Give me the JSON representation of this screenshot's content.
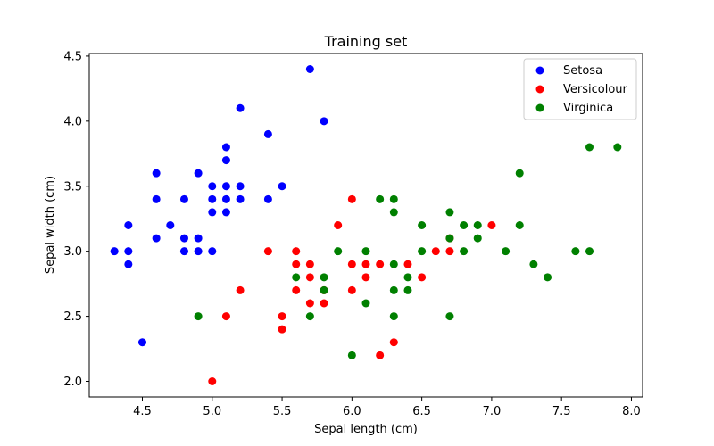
{
  "chart_data": {
    "type": "scatter",
    "title": "Training set",
    "xlabel": "Sepal length (cm)",
    "ylabel": "Sepal width (cm)",
    "xlim": [
      4.12,
      8.08
    ],
    "ylim": [
      1.88,
      4.52
    ],
    "xticks": [
      "4.5",
      "5.0",
      "5.5",
      "6.0",
      "6.5",
      "7.0",
      "7.5",
      "8.0"
    ],
    "xtick_values": [
      4.5,
      5.0,
      5.5,
      6.0,
      6.5,
      7.0,
      7.5,
      8.0
    ],
    "yticks": [
      "2.0",
      "2.5",
      "3.0",
      "3.5",
      "4.0",
      "4.5"
    ],
    "ytick_values": [
      2.0,
      2.5,
      3.0,
      3.5,
      4.0,
      4.5
    ],
    "grid": false,
    "legend_position": "top-right",
    "series": [
      {
        "name": "Setosa",
        "color": "#0000ff",
        "points": [
          [
            4.3,
            3.0
          ],
          [
            4.4,
            3.2
          ],
          [
            4.4,
            3.0
          ],
          [
            4.4,
            2.9
          ],
          [
            4.5,
            2.3
          ],
          [
            4.6,
            3.6
          ],
          [
            4.6,
            3.4
          ],
          [
            4.6,
            3.1
          ],
          [
            4.7,
            3.2
          ],
          [
            4.8,
            3.4
          ],
          [
            4.8,
            3.1
          ],
          [
            4.8,
            3.0
          ],
          [
            4.9,
            3.6
          ],
          [
            4.9,
            3.1
          ],
          [
            4.9,
            3.0
          ],
          [
            5.0,
            3.5
          ],
          [
            5.0,
            3.4
          ],
          [
            5.0,
            3.3
          ],
          [
            5.0,
            3.0
          ],
          [
            5.1,
            3.8
          ],
          [
            5.1,
            3.7
          ],
          [
            5.1,
            3.5
          ],
          [
            5.1,
            3.4
          ],
          [
            5.1,
            3.3
          ],
          [
            5.2,
            4.1
          ],
          [
            5.2,
            3.5
          ],
          [
            5.2,
            3.4
          ],
          [
            5.4,
            3.9
          ],
          [
            5.4,
            3.4
          ],
          [
            5.5,
            3.5
          ],
          [
            5.7,
            4.4
          ],
          [
            5.8,
            4.0
          ]
        ]
      },
      {
        "name": "Versicolour",
        "color": "#ff0000",
        "points": [
          [
            5.0,
            2.0
          ],
          [
            5.1,
            2.5
          ],
          [
            5.2,
            2.7
          ],
          [
            5.4,
            3.0
          ],
          [
            5.5,
            2.5
          ],
          [
            5.5,
            2.4
          ],
          [
            5.6,
            3.0
          ],
          [
            5.6,
            2.9
          ],
          [
            5.6,
            2.7
          ],
          [
            5.7,
            2.9
          ],
          [
            5.7,
            2.8
          ],
          [
            5.7,
            2.6
          ],
          [
            5.8,
            2.7
          ],
          [
            5.8,
            2.6
          ],
          [
            5.9,
            3.2
          ],
          [
            6.0,
            3.4
          ],
          [
            6.0,
            2.9
          ],
          [
            6.0,
            2.7
          ],
          [
            6.1,
            2.9
          ],
          [
            6.1,
            2.8
          ],
          [
            6.2,
            2.9
          ],
          [
            6.2,
            2.2
          ],
          [
            6.3,
            2.3
          ],
          [
            6.4,
            2.9
          ],
          [
            6.5,
            2.8
          ],
          [
            6.6,
            3.0
          ],
          [
            6.7,
            3.1
          ],
          [
            6.7,
            3.0
          ],
          [
            7.0,
            3.2
          ]
        ]
      },
      {
        "name": "Virginica",
        "color": "#008000",
        "points": [
          [
            4.9,
            2.5
          ],
          [
            5.6,
            2.8
          ],
          [
            5.7,
            2.5
          ],
          [
            5.8,
            2.8
          ],
          [
            5.8,
            2.7
          ],
          [
            5.9,
            3.0
          ],
          [
            6.0,
            2.2
          ],
          [
            6.1,
            3.0
          ],
          [
            6.1,
            2.6
          ],
          [
            6.2,
            3.4
          ],
          [
            6.3,
            3.4
          ],
          [
            6.3,
            3.3
          ],
          [
            6.3,
            2.9
          ],
          [
            6.3,
            2.7
          ],
          [
            6.3,
            2.5
          ],
          [
            6.4,
            2.8
          ],
          [
            6.4,
            2.7
          ],
          [
            6.5,
            3.2
          ],
          [
            6.5,
            3.0
          ],
          [
            6.7,
            3.3
          ],
          [
            6.7,
            3.1
          ],
          [
            6.7,
            2.5
          ],
          [
            6.8,
            3.2
          ],
          [
            6.8,
            3.0
          ],
          [
            6.9,
            3.2
          ],
          [
            6.9,
            3.1
          ],
          [
            7.1,
            3.0
          ],
          [
            7.2,
            3.6
          ],
          [
            7.2,
            3.2
          ],
          [
            7.3,
            2.9
          ],
          [
            7.4,
            2.8
          ],
          [
            7.6,
            3.0
          ],
          [
            7.7,
            3.8
          ],
          [
            7.7,
            3.0
          ],
          [
            7.9,
            3.8
          ]
        ]
      }
    ]
  }
}
